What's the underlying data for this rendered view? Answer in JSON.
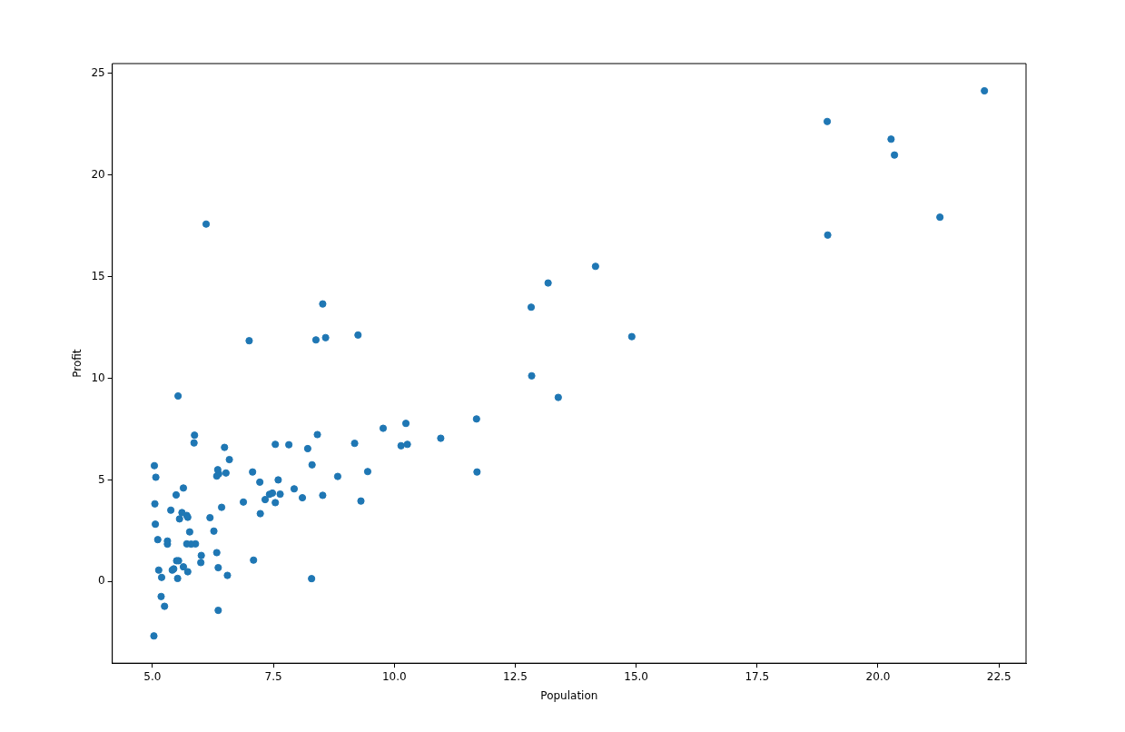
{
  "chart_data": {
    "type": "scatter",
    "xlabel": "Population",
    "ylabel": "Profit",
    "x": [
      6.11,
      5.53,
      8.52,
      7.0,
      5.86,
      8.38,
      7.48,
      8.58,
      6.49,
      5.05,
      5.71,
      14.16,
      5.73,
      8.41,
      5.64,
      5.38,
      6.37,
      5.13,
      6.43,
      7.07,
      6.19,
      20.27,
      5.49,
      6.33,
      5.56,
      18.95,
      12.83,
      10.96,
      13.18,
      22.2,
      5.25,
      6.59,
      9.25,
      5.89,
      8.21,
      7.93,
      8.1,
      5.61,
      12.84,
      6.35,
      5.41,
      6.88,
      11.71,
      5.77,
      7.82,
      7.09,
      5.07,
      5.8,
      11.7,
      5.54,
      7.54,
      5.31,
      7.42,
      7.6,
      6.33,
      6.36,
      6.27,
      5.64,
      9.31,
      9.45,
      8.83,
      5.18,
      21.28,
      14.91,
      18.96,
      7.22,
      8.3,
      10.24,
      5.5,
      20.34,
      10.14,
      7.33,
      6.01,
      7.23,
      5.03,
      6.55,
      7.54,
      5.04,
      10.27,
      5.11,
      5.73,
      5.19,
      6.36,
      9.77,
      6.52,
      8.52,
      9.18,
      6.0,
      5.52,
      5.06,
      5.71,
      7.64,
      5.87,
      5.31,
      8.29,
      13.39,
      5.44
    ],
    "values": [
      17.59,
      9.13,
      13.66,
      11.85,
      6.82,
      11.89,
      4.35,
      12.0,
      6.6,
      3.82,
      3.25,
      15.51,
      3.16,
      7.23,
      0.72,
      3.51,
      5.3,
      0.56,
      3.65,
      5.39,
      3.14,
      21.77,
      4.26,
      5.19,
      3.08,
      22.64,
      13.5,
      7.05,
      14.69,
      24.15,
      -1.22,
      6.0,
      12.13,
      1.85,
      6.54,
      4.56,
      4.12,
      3.39,
      10.12,
      5.5,
      0.56,
      3.91,
      5.39,
      2.44,
      6.73,
      1.05,
      5.13,
      1.84,
      8.0,
      1.02,
      6.75,
      1.84,
      4.29,
      5.0,
      1.42,
      -1.42,
      2.48,
      4.6,
      3.96,
      5.41,
      5.17,
      -0.74,
      17.93,
      12.05,
      17.05,
      4.89,
      5.74,
      7.78,
      1.02,
      20.99,
      6.68,
      4.03,
      1.28,
      3.34,
      -2.68,
      0.3,
      3.88,
      5.7,
      6.75,
      2.06,
      0.48,
      0.2,
      0.68,
      7.54,
      5.34,
      4.24,
      6.8,
      0.93,
      0.15,
      2.82,
      1.85,
      4.3,
      7.2,
      1.99,
      0.14,
      9.06,
      0.62
    ],
    "color": "#1f77b4",
    "marker": "circle",
    "xlim": [
      4.17,
      23.06
    ],
    "ylim": [
      -4.02,
      25.49
    ],
    "xticks": [
      {
        "value": 5,
        "label": "5.0"
      },
      {
        "value": 7.5,
        "label": "7.5"
      },
      {
        "value": 10,
        "label": "10.0"
      },
      {
        "value": 12.5,
        "label": "12.5"
      },
      {
        "value": 15,
        "label": "15.0"
      },
      {
        "value": 17.5,
        "label": "17.5"
      },
      {
        "value": 20,
        "label": "20.0"
      },
      {
        "value": 22.5,
        "label": "22.5"
      }
    ],
    "yticks": [
      0,
      5,
      10,
      15,
      20,
      25
    ],
    "grid": false,
    "legend": false
  }
}
